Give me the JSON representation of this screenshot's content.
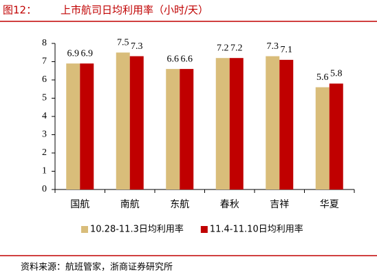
{
  "chart_data": {
    "type": "bar",
    "figure_label": "图12：",
    "title": "上市航司日均利用率（小时/天）",
    "source": "资料来源：航班管家，浙商证券研究所",
    "categories": [
      "国航",
      "南航",
      "东航",
      "春秋",
      "吉祥",
      "华夏"
    ],
    "series": [
      {
        "name": "10.28-11.3日均利用率",
        "color": "#d9bd7a",
        "values": [
          6.9,
          7.5,
          6.6,
          7.2,
          7.3,
          5.6
        ]
      },
      {
        "name": "11.4-11.10日均利用率",
        "color": "#c00000",
        "values": [
          6.9,
          7.3,
          6.6,
          7.2,
          7.1,
          5.8
        ]
      }
    ],
    "ylim": [
      0,
      8
    ],
    "yticks": [
      0,
      1,
      2,
      3,
      4,
      5,
      6,
      7,
      8
    ],
    "grid": false,
    "legend": "bottom"
  }
}
